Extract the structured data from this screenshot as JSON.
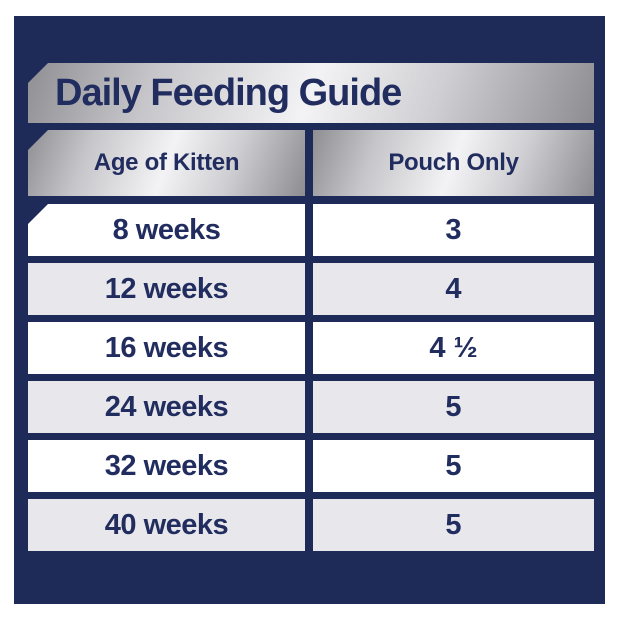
{
  "title": "Daily Feeding Guide",
  "table": {
    "columns": [
      {
        "label": "Age of Kitten"
      },
      {
        "label": "Pouch Only"
      }
    ],
    "rows": [
      {
        "age": "8 weeks",
        "pouches": "3"
      },
      {
        "age": "12 weeks",
        "pouches": "4"
      },
      {
        "age": "16 weeks",
        "pouches": "4 ½"
      },
      {
        "age": "24 weeks",
        "pouches": "5"
      },
      {
        "age": "32 weeks",
        "pouches": "5"
      },
      {
        "age": "40 weeks",
        "pouches": "5"
      }
    ]
  },
  "colors": {
    "background_navy": "#1e2a58",
    "text_navy": "#222d5f",
    "silver_light": "#f3f3f5",
    "silver_dark": "#8d8d91",
    "row_alt": "#e8e8ec",
    "row_white": "#ffffff"
  },
  "chart_data": {
    "type": "table",
    "title": "Daily Feeding Guide",
    "columns": [
      "Age of Kitten",
      "Pouch Only"
    ],
    "rows": [
      [
        "8 weeks",
        "3"
      ],
      [
        "12 weeks",
        "4"
      ],
      [
        "16 weeks",
        "4 ½"
      ],
      [
        "24 weeks",
        "5"
      ],
      [
        "32 weeks",
        "5"
      ],
      [
        "40 weeks",
        "5"
      ]
    ]
  }
}
